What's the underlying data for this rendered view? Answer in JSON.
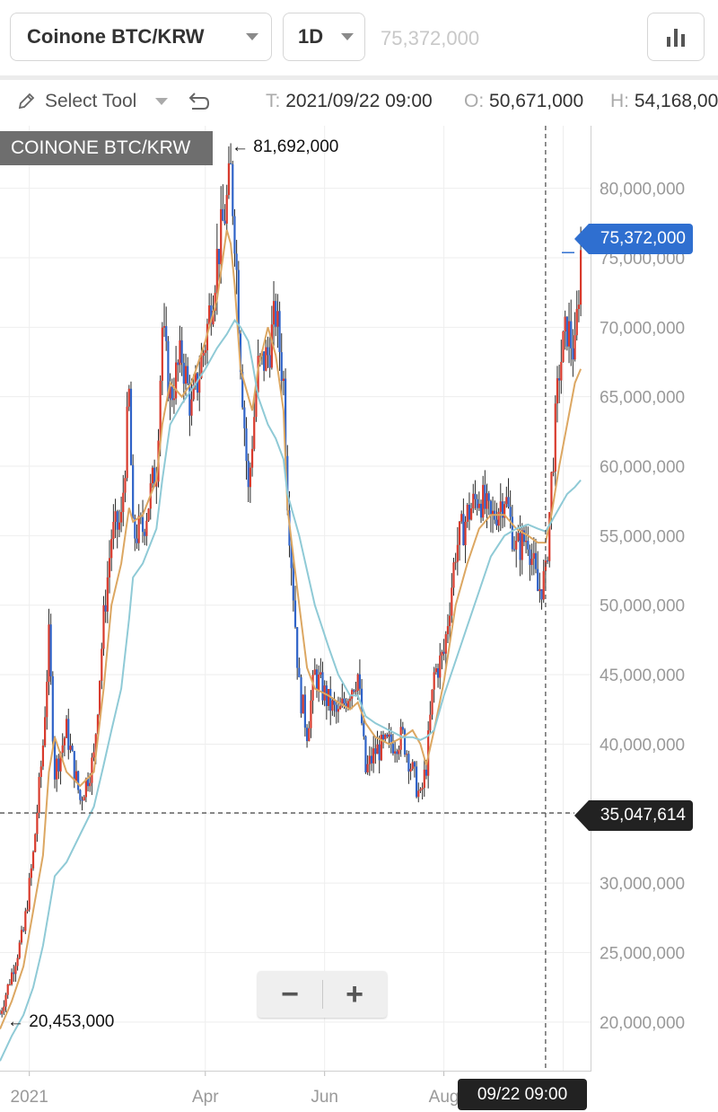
{
  "header": {
    "symbol": "Coinone BTC/KRW",
    "interval": "1D",
    "last_price": "75,372,000"
  },
  "icons": {
    "chart_type": "bar-chart-icon",
    "draw_tool": "pencil-icon",
    "dropdown": "chevron-down-icon",
    "undo": "undo-icon"
  },
  "toolbar": {
    "select_tool_label": "Select Tool",
    "ohlc": [
      {
        "label": "T:",
        "value": "2021/09/22 09:00"
      },
      {
        "label": "O:",
        "value": "50,671,000"
      },
      {
        "label": "H:",
        "value": "54,168,000"
      }
    ]
  },
  "chart": {
    "symbol_tag": "COINONE BTC/KRW",
    "high_annotation": "← 81,692,000",
    "low_annotation": "← 20,453,000",
    "current_price_tag": "75,372,000",
    "crosshair_price_tag": "35,047,614",
    "crosshair_time_tag": "09/22 09:00",
    "zoom_out_label": "−",
    "zoom_in_label": "+"
  },
  "colors": {
    "up_candle": "#d83a2c",
    "down_candle": "#2f63c8",
    "wick": "#2a2a2a",
    "ma_fast": "#dca762",
    "ma_slow": "#8fcad6",
    "price_tag": "#2f6fd0",
    "crosshair": "#555555"
  },
  "chart_data": {
    "type": "candlestick",
    "title": "COINONE BTC/KRW",
    "interval": "1D",
    "x_tick_labels": [
      "2021",
      "Apr",
      "Jun",
      "Aug"
    ],
    "y_tick_labels": [
      "20,000,000",
      "25,000,000",
      "30,000,000",
      "35,000,000",
      "40,000,000",
      "45,000,000",
      "50,000,000",
      "55,000,000",
      "60,000,000",
      "65,000,000",
      "70,000,000",
      "75,000,000",
      "80,000,000"
    ],
    "ylim": [
      16500000,
      84500000
    ],
    "xlim": [
      "2020-12-17",
      "2021-10-15"
    ],
    "grid": true,
    "max_high": 81692000,
    "min_low": 20453000,
    "last_close": 75372000,
    "crosshair": {
      "price": 35047614,
      "date": "2021-09-22"
    },
    "close_series": {
      "name": "close",
      "x": [
        "2020-12-17",
        "2020-12-23",
        "2020-12-29",
        "2021-01-03",
        "2021-01-08",
        "2021-01-11",
        "2021-01-14",
        "2021-01-20",
        "2021-01-27",
        "2021-02-03",
        "2021-02-08",
        "2021-02-12",
        "2021-02-17",
        "2021-02-21",
        "2021-02-23",
        "2021-02-28",
        "2021-03-07",
        "2021-03-10",
        "2021-03-14",
        "2021-03-20",
        "2021-03-25",
        "2021-04-01",
        "2021-04-07",
        "2021-04-12",
        "2021-04-14",
        "2021-04-16",
        "2021-04-19",
        "2021-04-23",
        "2021-04-25",
        "2021-04-28",
        "2021-05-03",
        "2021-05-07",
        "2021-05-11",
        "2021-05-13",
        "2021-05-19",
        "2021-05-23",
        "2021-05-27",
        "2021-06-03",
        "2021-06-08",
        "2021-06-14",
        "2021-06-18",
        "2021-06-22",
        "2021-06-27",
        "2021-07-04",
        "2021-07-11",
        "2021-07-16",
        "2021-07-20",
        "2021-07-23",
        "2021-07-27",
        "2021-08-01",
        "2021-08-07",
        "2021-08-13",
        "2021-08-19",
        "2021-08-25",
        "2021-09-01",
        "2021-09-07",
        "2021-09-13",
        "2021-09-18",
        "2021-09-22",
        "2021-09-25",
        "2021-09-29",
        "2021-10-03",
        "2021-10-07",
        "2021-10-10"
      ],
      "values": [
        20600000,
        23500000,
        26500000,
        32000000,
        40000000,
        47500000,
        38000000,
        41000000,
        36000000,
        39000000,
        49000000,
        55000000,
        56000000,
        65000000,
        55000000,
        55500000,
        60000000,
        70000000,
        65000000,
        68000000,
        64000000,
        69000000,
        75000000,
        79000000,
        81000000,
        77000000,
        68000000,
        58000000,
        62000000,
        67000000,
        68000000,
        71000000,
        66000000,
        58000000,
        44000000,
        41000000,
        45000000,
        43000000,
        42000000,
        44000000,
        45000000,
        38000000,
        39500000,
        40000000,
        40500000,
        38000000,
        36000000,
        38500000,
        45000000,
        46500000,
        54000000,
        56500000,
        58000000,
        56000000,
        58000000,
        54000000,
        55000000,
        51000000,
        52000000,
        59000000,
        67000000,
        70000000,
        68000000,
        75372000
      ]
    },
    "series": [
      {
        "name": "MA fast",
        "values": [
          19500000,
          21500000,
          24000000,
          28000000,
          32000000,
          38000000,
          40500000,
          38000000,
          37000000,
          38000000,
          44000000,
          50000000,
          53000000,
          57000000,
          56000000,
          56500000,
          59000000,
          63000000,
          66000000,
          65000000,
          66000000,
          69000000,
          72000000,
          77000000,
          76000000,
          73000000,
          67000000,
          65000000,
          64000000,
          67000000,
          70000000,
          68000000,
          64000000,
          57000000,
          50000000,
          45500000,
          44000000,
          43500000,
          43000000,
          42500000,
          43000000,
          41500000,
          40500000,
          40000000,
          40500000,
          41000000,
          40000000,
          38500000,
          41000000,
          44500000,
          50000000,
          53000000,
          55500000,
          56500000,
          56500000,
          55500000,
          55000000,
          54500000,
          54500000,
          56500000,
          60000000,
          63000000,
          66000000,
          67000000
        ]
      },
      {
        "name": "MA slow",
        "values": [
          17200000,
          19000000,
          20500000,
          22500000,
          25500000,
          28000000,
          30500000,
          31500000,
          33500000,
          35500000,
          38500000,
          41000000,
          44000000,
          49000000,
          52000000,
          53000000,
          55500000,
          59000000,
          63000000,
          64500000,
          65500000,
          67000000,
          68500000,
          69500000,
          70000000,
          70500000,
          70000000,
          69000000,
          67500000,
          65000000,
          63000000,
          62000000,
          60500000,
          58000000,
          55000000,
          52500000,
          50000000,
          47000000,
          45000000,
          43500000,
          43500000,
          42000000,
          41500000,
          41000000,
          40500000,
          40500000,
          40300000,
          40500000,
          41000000,
          43500000,
          46000000,
          48500000,
          51000000,
          53500000,
          55000000,
          55500000,
          55800000,
          55500000,
          55300000,
          56000000,
          57000000,
          58000000,
          58500000,
          59000000
        ]
      }
    ]
  }
}
